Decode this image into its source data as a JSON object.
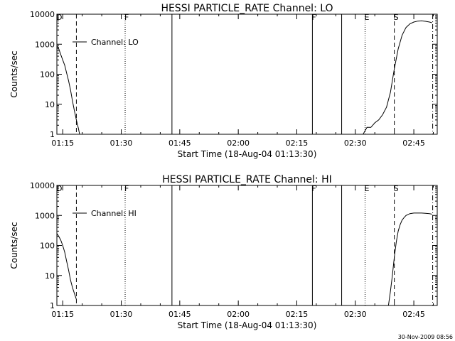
{
  "footer": {
    "timestamp": "30-Nov-2009 08:56"
  },
  "colors": {
    "foreground": "#000000",
    "background": "#ffffff"
  },
  "chart_data": [
    {
      "type": "line",
      "title": "HESSI PARTICLE_RATE Channel: LO",
      "xlabel": "Start Time (18-Aug-04 01:13:30)",
      "ylabel": "Counts/sec",
      "y_scale": "log",
      "ylim": [
        1,
        10000
      ],
      "xlim": [
        "01:13:30",
        "02:51:00"
      ],
      "x_ticks": [
        "01:15",
        "01:30",
        "01:45",
        "02:00",
        "02:15",
        "02:30",
        "02:45"
      ],
      "y_ticks": [
        "1",
        "10",
        "100",
        "1000",
        "10000"
      ],
      "legend": {
        "label": "Channel: LO",
        "placement": "top-left"
      },
      "event_markers": [
        {
          "time": "01:13:30",
          "label": "D",
          "style": "dotted"
        },
        {
          "time": "01:18:30",
          "label": "",
          "style": "dashed"
        },
        {
          "time": "01:31:00",
          "label": "F",
          "style": "dotted"
        },
        {
          "time": "01:43:00",
          "label": "",
          "style": "solid"
        },
        {
          "time": "02:19:00",
          "label": "F",
          "style": "solid"
        },
        {
          "time": "02:26:30",
          "label": "",
          "style": "solid"
        },
        {
          "time": "02:32:30",
          "label": "E",
          "style": "dotted"
        },
        {
          "time": "02:40:00",
          "label": "S",
          "style": "dashed"
        },
        {
          "time": "02:49:50",
          "label": "",
          "style": "dashdot"
        }
      ],
      "segments": [
        {
          "x": [
            "01:13:30",
            "01:14:00",
            "01:14:30",
            "01:15:00",
            "01:15:30",
            "01:16:00",
            "01:16:30",
            "01:17:00",
            "01:17:30",
            "01:18:00",
            "01:18:30",
            "01:19:00",
            "01:19:20"
          ],
          "y": [
            900,
            700,
            450,
            300,
            200,
            110,
            60,
            30,
            13,
            6,
            3,
            1.6,
            1.0
          ]
        },
        {
          "x": [
            "02:32:00",
            "02:33:00",
            "02:34:00",
            "02:35:00",
            "02:36:00",
            "02:37:00",
            "02:38:00",
            "02:39:00",
            "02:40:00",
            "02:41:00",
            "02:42:00",
            "02:43:00",
            "02:44:00",
            "02:45:00",
            "02:46:00",
            "02:47:00",
            "02:48:00",
            "02:49:00",
            "02:49:40"
          ],
          "y": [
            1.0,
            1.7,
            1.7,
            2.4,
            3.0,
            4.5,
            8,
            25,
            150,
            700,
            2000,
            3600,
            4800,
            5500,
            5900,
            6000,
            5800,
            5500,
            5200
          ]
        }
      ]
    },
    {
      "type": "line",
      "title": "HESSI PARTICLE_RATE Channel: HI",
      "xlabel": "Start Time (18-Aug-04 01:13:30)",
      "ylabel": "Counts/sec",
      "y_scale": "log",
      "ylim": [
        1,
        10000
      ],
      "xlim": [
        "01:13:30",
        "02:51:00"
      ],
      "x_ticks": [
        "01:15",
        "01:30",
        "01:45",
        "02:00",
        "02:15",
        "02:30",
        "02:45"
      ],
      "y_ticks": [
        "1",
        "10",
        "100",
        "1000",
        "10000"
      ],
      "legend": {
        "label": "Channel: HI",
        "placement": "top-left"
      },
      "event_markers": [
        {
          "time": "01:13:30",
          "label": "D",
          "style": "dotted"
        },
        {
          "time": "01:18:30",
          "label": "",
          "style": "dashed"
        },
        {
          "time": "01:31:00",
          "label": "F",
          "style": "dotted"
        },
        {
          "time": "01:43:00",
          "label": "",
          "style": "solid"
        },
        {
          "time": "02:19:00",
          "label": "F",
          "style": "solid"
        },
        {
          "time": "02:26:30",
          "label": "",
          "style": "solid"
        },
        {
          "time": "02:32:30",
          "label": "E",
          "style": "dotted"
        },
        {
          "time": "02:40:00",
          "label": "S",
          "style": "dashed"
        },
        {
          "time": "02:49:50",
          "label": "",
          "style": "dashdot"
        }
      ],
      "segments": [
        {
          "x": [
            "01:13:30",
            "01:14:00",
            "01:14:30",
            "01:15:00",
            "01:15:30",
            "01:16:00",
            "01:16:30",
            "01:17:00",
            "01:17:30",
            "01:18:00",
            "01:18:30"
          ],
          "y": [
            250,
            200,
            150,
            100,
            60,
            30,
            15,
            7,
            4,
            2.5,
            1.6
          ]
        },
        {
          "x": [
            "02:38:30",
            "02:39:00",
            "02:39:30",
            "02:40:00",
            "02:40:30",
            "02:41:00",
            "02:41:30",
            "02:42:00",
            "02:42:30",
            "02:43:00",
            "02:44:00",
            "02:45:00",
            "02:46:00",
            "02:47:00",
            "02:48:00",
            "02:49:00",
            "02:49:40"
          ],
          "y": [
            1.0,
            3,
            10,
            40,
            130,
            300,
            500,
            700,
            850,
            1000,
            1150,
            1200,
            1200,
            1200,
            1180,
            1150,
            1100
          ]
        }
      ]
    }
  ]
}
